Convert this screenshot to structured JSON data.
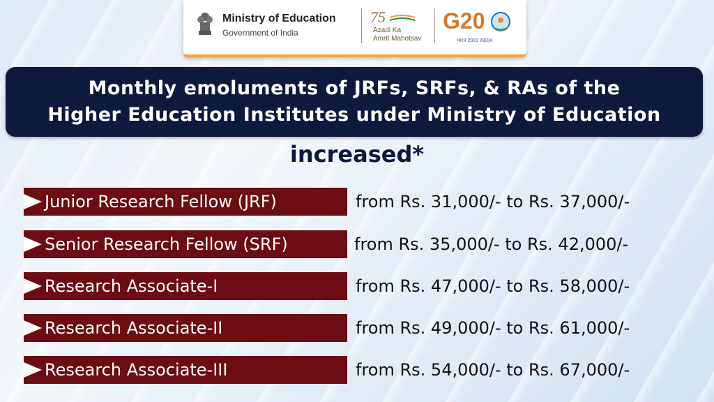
{
  "header": {
    "ministry_name": "Ministry of Education",
    "ministry_sub": "Government of India",
    "aka_number": "75",
    "aka_line1": "Azadi Ka",
    "aka_line2": "Amrit Mahotsav",
    "g20_text": "G20",
    "g20_tag": "भारत 2023 INDIA"
  },
  "title": {
    "line1": "Monthly emoluments of JRFs, SRFs, & RAs of the",
    "line2": "Higher Education Institutes under Ministry of Education",
    "increased": "increased*"
  },
  "rows": [
    {
      "label": "Junior Research Fellow (JRF)",
      "amount": "from Rs. 31,000/- to Rs. 37,000/-"
    },
    {
      "label": "Senior Research Fellow (SRF)",
      "amount": "from Rs. 35,000/- to Rs. 42,000/-"
    },
    {
      "label": "Research Associate-I",
      "amount": "from Rs. 47,000/- to Rs. 58,000/-"
    },
    {
      "label": "Research Associate-II",
      "amount": "from Rs. 49,000/- to Rs. 61,000/-"
    },
    {
      "label": "Research Associate-III",
      "amount": "from Rs. 54,000/- to Rs. 67,000/-"
    }
  ],
  "colors": {
    "banner_bg": "#0d1a3d",
    "label_bg": "#6b0d12",
    "accent_orange": "#f0a93a"
  }
}
